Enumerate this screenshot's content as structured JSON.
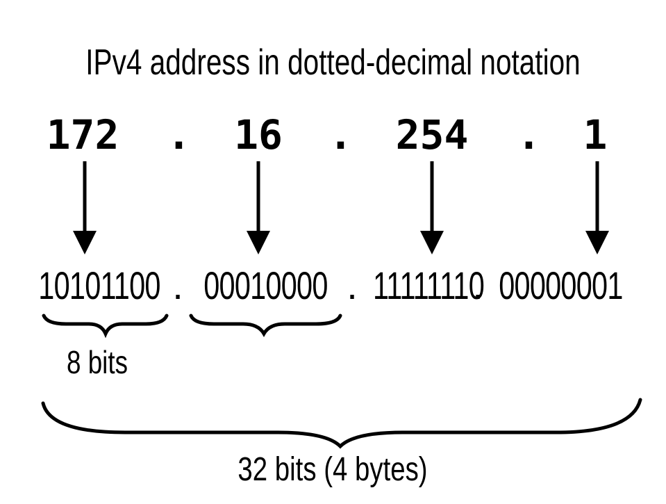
{
  "title": "IPv4 address in dotted-decimal notation",
  "decimal": {
    "octets": [
      "172",
      "16",
      "254",
      "1"
    ],
    "separator": "."
  },
  "binary": {
    "octets": [
      "10101100",
      "00010000",
      "11111110",
      "00000001"
    ],
    "separator": "."
  },
  "labels": {
    "octet_size": "8 bits",
    "total_size": "32 bits (4 bytes)"
  },
  "colors": {
    "ink": "#000000",
    "background": "#ffffff"
  }
}
